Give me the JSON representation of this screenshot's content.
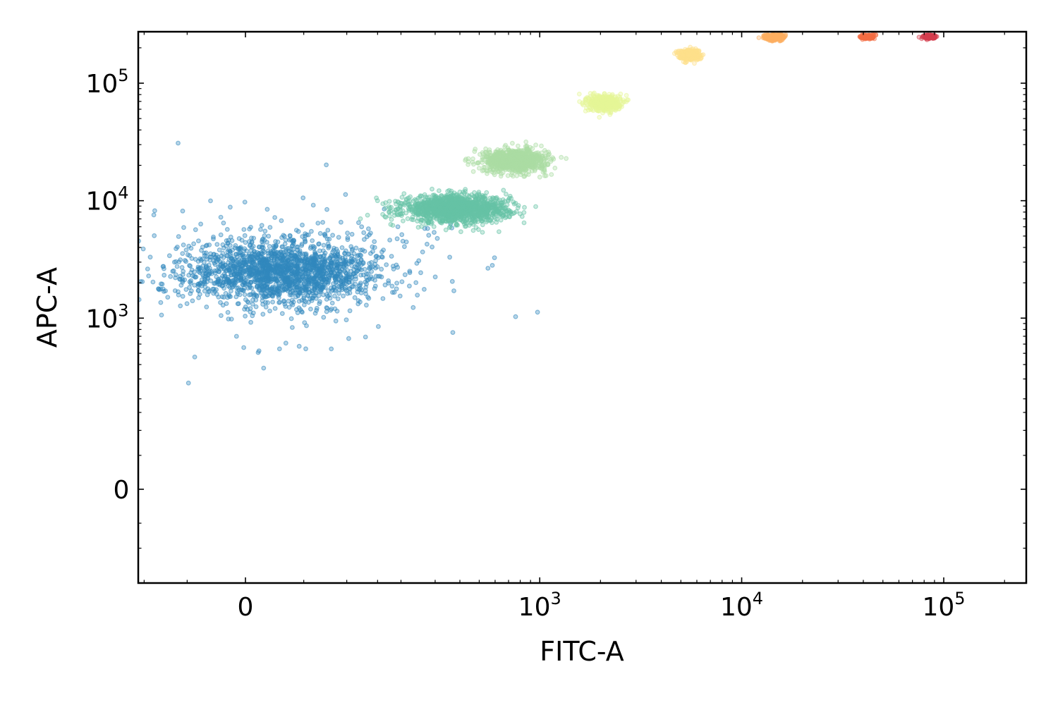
{
  "chart_data": {
    "type": "scatter",
    "title": "",
    "xlabel": "FITC-A",
    "ylabel": "APC-A",
    "x_scale": "logicle",
    "y_scale": "logicle",
    "xlim": [
      -140,
      200000
    ],
    "ylim": [
      -180,
      250000
    ],
    "grid": false,
    "legend": "none",
    "x_ticks": [
      {
        "value": 0,
        "label": "0",
        "exp": ""
      },
      {
        "value": 1000,
        "label": "10",
        "exp": "3"
      },
      {
        "value": 10000,
        "label": "10",
        "exp": "4"
      },
      {
        "value": 100000,
        "label": "10",
        "exp": "5"
      }
    ],
    "y_ticks": [
      {
        "value": 0,
        "label": "0",
        "exp": ""
      },
      {
        "value": 1000,
        "label": "10",
        "exp": "3"
      },
      {
        "value": 10000,
        "label": "10",
        "exp": "4"
      },
      {
        "value": 100000,
        "label": "10",
        "exp": "5"
      }
    ],
    "series": [
      {
        "color": "#3288bd",
        "x_center": 30,
        "y_center": 2500,
        "count": 2000
      },
      {
        "color": "#66c2a5",
        "x_center": 380,
        "y_center": 8500,
        "count": 1400
      },
      {
        "color": "#abdda4",
        "x_center": 750,
        "y_center": 22000,
        "count": 900
      },
      {
        "color": "#e6f598",
        "x_center": 2100,
        "y_center": 68000,
        "count": 450
      },
      {
        "color": "#fee08b",
        "x_center": 5500,
        "y_center": 175000,
        "count": 350
      },
      {
        "color": "#fdae61",
        "x_center": 14500,
        "y_center": 245000,
        "count": 250
      },
      {
        "color": "#f46d43",
        "x_center": 42000,
        "y_center": 248000,
        "count": 150
      },
      {
        "color": "#d53e4f",
        "x_center": 85000,
        "y_center": 248000,
        "count": 120
      }
    ]
  }
}
